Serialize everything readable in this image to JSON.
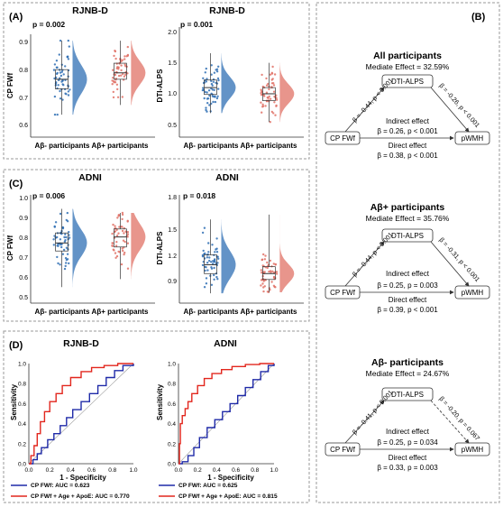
{
  "panel_labels": {
    "A": "(A)",
    "B": "(B)",
    "C": "(C)",
    "D": "(D)"
  },
  "panel_a": {
    "left": {
      "title": "RJNB-D",
      "p": "p = 0.002",
      "ylabel": "CP FWf",
      "yticks": [
        "0.9",
        "0.8",
        "0.7",
        "0.6"
      ]
    },
    "right": {
      "title": "RJNB-D",
      "p": "p = 0.001",
      "ylabel": "DTI-ALPS",
      "yticks": [
        "2.0",
        "1.5",
        "1.0",
        "0.5"
      ]
    },
    "xcats": [
      "Aβ- participants",
      "Aβ+ participants"
    ]
  },
  "panel_c": {
    "left": {
      "title": "ADNI",
      "p": "p = 0.006",
      "ylabel": "CP FWf",
      "yticks": [
        "1.0",
        "0.9",
        "0.8",
        "0.7",
        "0.6",
        "0.5"
      ]
    },
    "right": {
      "title": "ADNI",
      "p": "p = 0.018",
      "ylabel": "DTI-ALPS",
      "yticks": [
        "1.8",
        "1.5",
        "1.2",
        "0.9"
      ]
    },
    "xcats": [
      "Aβ- participants",
      "Aβ+ participants"
    ]
  },
  "panel_d": {
    "left": {
      "title": "RJNB-D",
      "leg1": "CP FWf: AUC = 0.623",
      "leg2": "CP FWf + Age + ApoE: AUC = 0.770"
    },
    "right": {
      "title": "ADNI",
      "leg1": "CP FWf: AUC = 0.625",
      "leg2": "CP FWf + Age + ApoE: AUC = 0.815"
    },
    "xlabel": "1 - Specificity",
    "ylabel": "Sensitivity",
    "ticks": [
      "0.0",
      "0.2",
      "0.4",
      "0.6",
      "0.8",
      "1.0"
    ]
  },
  "mediation": [
    {
      "title": "All participants",
      "effect": "Mediate Effect = 32.59%",
      "b1": "β = -0.44, p < 0.001",
      "b2": "β = -0.26, p < 0.001",
      "indirect_label": "Indirect effect",
      "indirect": "β = 0.26, p < 0.001",
      "direct_label": "Direct effect",
      "direct": "β = 0.38, p < 0.001"
    },
    {
      "title": "Aβ+ participants",
      "effect": "Mediate Effect = 35.76%",
      "b1": "β = -0.44, p < 0.001",
      "b2": "β = -0.31, p < 0.001",
      "indirect_label": "Indirect effect",
      "indirect": "β = 0.25, p = 0.003",
      "direct_label": "Direct effect",
      "direct": "β = 0.39, p < 0.001"
    },
    {
      "title": "Aβ- participants",
      "effect": "Mediate Effect = 24.67%",
      "b1": "β = -0.41, p < 0.001",
      "b2": "β = -0.20, p = 0.067",
      "indirect_label": "Indirect effect",
      "indirect": "β = 0.25, p = 0.034",
      "direct_label": "Direct effect",
      "direct": "β = 0.33, p = 0.003"
    }
  ],
  "node_labels": {
    "mediator": "DTI-ALPS",
    "exposure": "CP FWf",
    "outcome": "pWMH"
  },
  "chart_data": [
    {
      "type": "scatter",
      "title": "RJNB-D",
      "ylabel": "CP FWf",
      "categories": [
        "Aβ- participants",
        "Aβ+ participants"
      ],
      "ylim": [
        0.58,
        0.9
      ],
      "p_label": "p = 0.002",
      "series": [
        {
          "color": "#2f6fb4",
          "median": 0.76,
          "q1": 0.73,
          "q3": 0.79,
          "lo": 0.65,
          "hi": 0.88
        },
        {
          "color": "#e07166",
          "median": 0.78,
          "q1": 0.76,
          "q3": 0.81,
          "lo": 0.68,
          "hi": 0.88
        }
      ]
    },
    {
      "type": "scatter",
      "title": "RJNB-D",
      "ylabel": "DTI-ALPS",
      "categories": [
        "Aβ- participants",
        "Aβ+ participants"
      ],
      "ylim": [
        0.5,
        2.1
      ],
      "p_label": "p = 0.001",
      "series": [
        {
          "color": "#2f6fb4",
          "median": 1.22,
          "q1": 1.12,
          "q3": 1.33,
          "lo": 0.85,
          "hi": 1.72
        },
        {
          "color": "#e07166",
          "median": 1.13,
          "q1": 1.03,
          "q3": 1.22,
          "lo": 0.72,
          "hi": 1.58
        }
      ]
    },
    {
      "type": "scatter",
      "title": "ADNI",
      "ylabel": "CP FWf",
      "categories": [
        "Aβ- participants",
        "Aβ+ participants"
      ],
      "ylim": [
        0.48,
        1.02
      ],
      "p_label": "p = 0.006",
      "series": [
        {
          "color": "#2f6fb4",
          "median": 0.78,
          "q1": 0.74,
          "q3": 0.83,
          "lo": 0.56,
          "hi": 0.95
        },
        {
          "color": "#e07166",
          "median": 0.81,
          "q1": 0.76,
          "q3": 0.85,
          "lo": 0.6,
          "hi": 0.93
        }
      ]
    },
    {
      "type": "scatter",
      "title": "ADNI",
      "ylabel": "DTI-ALPS",
      "categories": [
        "Aβ- participants",
        "Aβ+ participants"
      ],
      "ylim": [
        0.75,
        1.85
      ],
      "p_label": "p = 0.018",
      "series": [
        {
          "color": "#2f6fb4",
          "median": 1.14,
          "q1": 1.05,
          "q3": 1.24,
          "lo": 0.85,
          "hi": 1.6
        },
        {
          "color": "#e07166",
          "median": 1.05,
          "q1": 0.99,
          "q3": 1.12,
          "lo": 0.86,
          "hi": 1.65
        }
      ]
    },
    {
      "type": "line",
      "title": "RJNB-D",
      "xlabel": "1 - Specificity",
      "ylabel": "Sensitivity",
      "xlim": [
        0,
        1
      ],
      "ylim": [
        0,
        1
      ],
      "series": [
        {
          "name": "CP FWf: AUC = 0.623",
          "color": "#1f2aa8",
          "x": [
            0,
            0.04,
            0.08,
            0.12,
            0.18,
            0.24,
            0.3,
            0.36,
            0.42,
            0.5,
            0.58,
            0.66,
            0.74,
            0.82,
            0.9,
            1
          ],
          "y": [
            0,
            0.04,
            0.1,
            0.16,
            0.24,
            0.3,
            0.38,
            0.46,
            0.54,
            0.62,
            0.7,
            0.78,
            0.86,
            0.93,
            0.98,
            1
          ]
        },
        {
          "name": "CP FWf + Age + ApoE: AUC = 0.770",
          "color": "#e2261d",
          "x": [
            0,
            0.02,
            0.05,
            0.08,
            0.11,
            0.15,
            0.2,
            0.26,
            0.32,
            0.4,
            0.5,
            0.6,
            0.72,
            0.85,
            1
          ],
          "y": [
            0,
            0.08,
            0.18,
            0.3,
            0.42,
            0.52,
            0.62,
            0.7,
            0.78,
            0.86,
            0.92,
            0.96,
            0.98,
            1,
            1
          ]
        }
      ]
    },
    {
      "type": "line",
      "title": "ADNI",
      "xlabel": "1 - Specificity",
      "ylabel": "Sensitivity",
      "xlim": [
        0,
        1
      ],
      "ylim": [
        0,
        1
      ],
      "series": [
        {
          "name": "CP FWf: AUC = 0.625",
          "color": "#1f2aa8",
          "x": [
            0,
            0.04,
            0.1,
            0.16,
            0.22,
            0.3,
            0.38,
            0.46,
            0.54,
            0.62,
            0.7,
            0.78,
            0.86,
            0.94,
            1
          ],
          "y": [
            0,
            0.02,
            0.08,
            0.16,
            0.26,
            0.36,
            0.44,
            0.52,
            0.6,
            0.68,
            0.76,
            0.84,
            0.92,
            0.98,
            1
          ]
        },
        {
          "name": "CP FWf + Age + ApoE: AUC = 0.815",
          "color": "#e2261d",
          "x": [
            0,
            0.01,
            0.02,
            0.04,
            0.07,
            0.1,
            0.14,
            0.2,
            0.27,
            0.35,
            0.45,
            0.56,
            0.7,
            0.85,
            1
          ],
          "y": [
            0,
            0.2,
            0.4,
            0.48,
            0.55,
            0.62,
            0.7,
            0.78,
            0.85,
            0.9,
            0.94,
            0.97,
            0.99,
            1,
            1
          ]
        }
      ]
    }
  ]
}
